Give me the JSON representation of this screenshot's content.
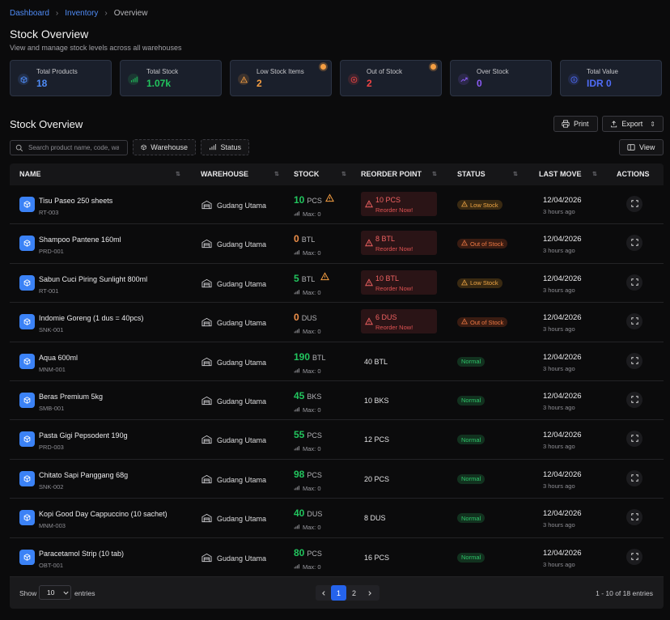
{
  "breadcrumb": [
    {
      "label": "Dashboard"
    },
    {
      "label": "Inventory"
    },
    {
      "label": "Overview"
    }
  ],
  "header": {
    "title": "Stock Overview",
    "subtitle": "View and manage stock levels across all warehouses"
  },
  "cards": [
    {
      "label": "Total Products",
      "value": "18",
      "color": "#4f8cf7",
      "icon": "cube-icon"
    },
    {
      "label": "Total Stock",
      "value": "1.07k",
      "color": "#22c55e",
      "icon": "bar-chart-icon"
    },
    {
      "label": "Low Stock Items",
      "value": "2",
      "color": "#f59e42",
      "icon": "warning-icon",
      "alert": true
    },
    {
      "label": "Out of Stock",
      "value": "2",
      "color": "#ef4444",
      "icon": "target-icon",
      "alert": true
    },
    {
      "label": "Over Stock",
      "value": "0",
      "color": "#8b5cf6",
      "icon": "trend-up-icon"
    },
    {
      "label": "Total Value",
      "value": "IDR 0",
      "color": "#4f6cf7",
      "icon": "dollar-icon"
    }
  ],
  "section": {
    "title": "Stock Overview"
  },
  "toolbar": {
    "print_label": "Print",
    "export_label": "Export",
    "view_label": "View",
    "search_placeholder": "Search product name, code, warehouse...",
    "warehouse_filter": "Warehouse",
    "status_filter": "Status"
  },
  "columns": [
    "NAME",
    "WAREHOUSE",
    "STOCK",
    "REORDER POINT",
    "STATUS",
    "LAST MOVE",
    "ACTIONS"
  ],
  "rows": [
    {
      "name": "Tisu Paseo 250 sheets",
      "code": "RT-003",
      "warehouse": "Gudang Utama",
      "stock": "10",
      "unit": "PCS",
      "max": "Max: 0",
      "warn": true,
      "reorder": "10 PCS",
      "reorder_alert": true,
      "reorder_note": "Reorder Now!",
      "status": "Low Stock",
      "status_type": "low",
      "date": "12/04/2026",
      "ago": "3 hours ago"
    },
    {
      "name": "Shampoo Pantene 160ml",
      "code": "PRD-001",
      "warehouse": "Gudang Utama",
      "stock": "0",
      "unit": "BTL",
      "max": "Max: 0",
      "warn": false,
      "reorder": "8 BTL",
      "reorder_alert": true,
      "reorder_note": "Reorder Now!",
      "status": "Out of Stock",
      "status_type": "out",
      "date": "12/04/2026",
      "ago": "3 hours ago"
    },
    {
      "name": "Sabun Cuci Piring Sunlight 800ml",
      "code": "RT-001",
      "warehouse": "Gudang Utama",
      "stock": "5",
      "unit": "BTL",
      "max": "Max: 0",
      "warn": true,
      "reorder": "10 BTL",
      "reorder_alert": true,
      "reorder_note": "Reorder Now!",
      "status": "Low Stock",
      "status_type": "low",
      "date": "12/04/2026",
      "ago": "3 hours ago"
    },
    {
      "name": "Indomie Goreng (1 dus = 40pcs)",
      "code": "SNK-001",
      "warehouse": "Gudang Utama",
      "stock": "0",
      "unit": "DUS",
      "max": "Max: 0",
      "warn": false,
      "reorder": "6 DUS",
      "reorder_alert": true,
      "reorder_note": "Reorder Now!",
      "status": "Out of Stock",
      "status_type": "out",
      "date": "12/04/2026",
      "ago": "3 hours ago"
    },
    {
      "name": "Aqua 600ml",
      "code": "MNM-001",
      "warehouse": "Gudang Utama",
      "stock": "190",
      "unit": "BTL",
      "max": "Max: 0",
      "warn": false,
      "reorder": "40 BTL",
      "reorder_alert": false,
      "status": "Normal",
      "status_type": "normal",
      "date": "12/04/2026",
      "ago": "3 hours ago"
    },
    {
      "name": "Beras Premium 5kg",
      "code": "SMB-001",
      "warehouse": "Gudang Utama",
      "stock": "45",
      "unit": "BKS",
      "max": "Max: 0",
      "warn": false,
      "reorder": "10 BKS",
      "reorder_alert": false,
      "status": "Normal",
      "status_type": "normal",
      "date": "12/04/2026",
      "ago": "3 hours ago"
    },
    {
      "name": "Pasta Gigi Pepsodent 190g",
      "code": "PRD-003",
      "warehouse": "Gudang Utama",
      "stock": "55",
      "unit": "PCS",
      "max": "Max: 0",
      "warn": false,
      "reorder": "12 PCS",
      "reorder_alert": false,
      "status": "Normal",
      "status_type": "normal",
      "date": "12/04/2026",
      "ago": "3 hours ago"
    },
    {
      "name": "Chitato Sapi Panggang 68g",
      "code": "SNK-002",
      "warehouse": "Gudang Utama",
      "stock": "98",
      "unit": "PCS",
      "max": "Max: 0",
      "warn": false,
      "reorder": "20 PCS",
      "reorder_alert": false,
      "status": "Normal",
      "status_type": "normal",
      "date": "12/04/2026",
      "ago": "3 hours ago"
    },
    {
      "name": "Kopi Good Day Cappuccino (10 sachet)",
      "code": "MNM-003",
      "warehouse": "Gudang Utama",
      "stock": "40",
      "unit": "DUS",
      "max": "Max: 0",
      "warn": false,
      "reorder": "8 DUS",
      "reorder_alert": false,
      "status": "Normal",
      "status_type": "normal",
      "date": "12/04/2026",
      "ago": "3 hours ago"
    },
    {
      "name": "Paracetamol Strip (10 tab)",
      "code": "OBT-001",
      "warehouse": "Gudang Utama",
      "stock": "80",
      "unit": "PCS",
      "max": "Max: 0",
      "warn": false,
      "reorder": "16 PCS",
      "reorder_alert": false,
      "status": "Normal",
      "status_type": "normal",
      "date": "12/04/2026",
      "ago": "3 hours ago"
    }
  ],
  "footer": {
    "show_label": "Show",
    "page_size": "10",
    "entries_label": "entries",
    "pages": [
      "1",
      "2"
    ],
    "current_page": "1",
    "info": "1 - 10 of 18 entries"
  },
  "colors": {
    "accent": "#3b82f6",
    "green": "#22c55e",
    "orange": "#f59e42",
    "red": "#ef4444"
  }
}
